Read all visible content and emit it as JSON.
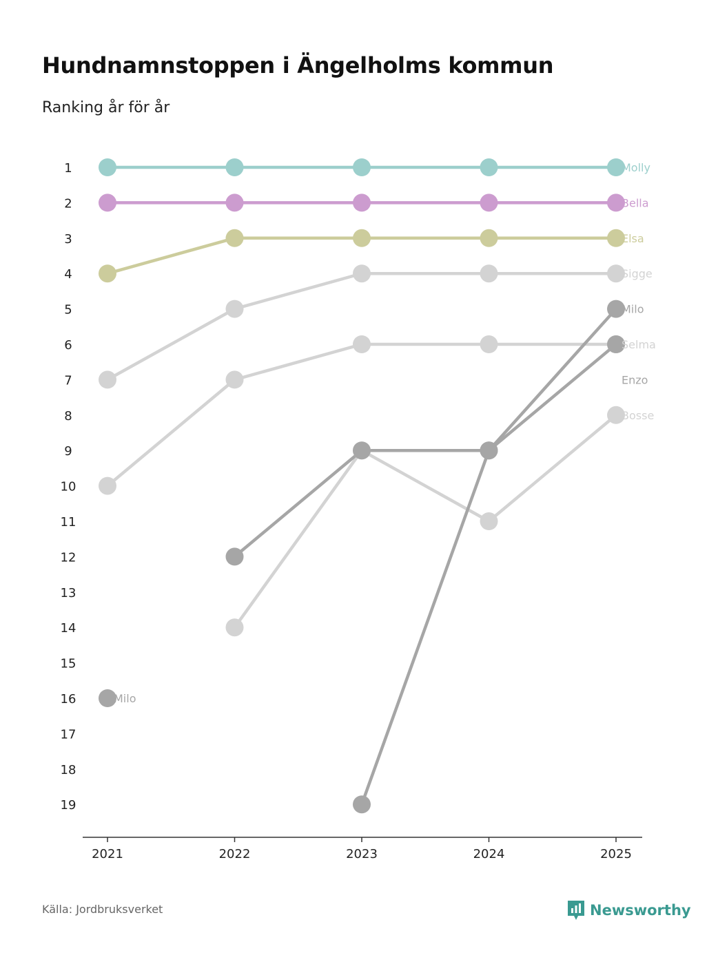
{
  "title": "Hundnamnstoppen i Ängelholms kommun",
  "subtitle": "Ranking år för år",
  "source": "Källa: Jordbruksverket",
  "brand": "Newsworthy",
  "colors": {
    "molly": "#9ccfcc",
    "bella": "#cc9ccf",
    "elsa": "#cccc9c",
    "light_gray": "#d3d3d3",
    "dark_gray": "#a6a6a6",
    "brand": "#3a9a91",
    "axis": "#333333"
  },
  "chart_data": {
    "type": "line",
    "title": "Hundnamnstoppen i Ängelholms kommun",
    "subtitle": "Ranking år för år",
    "x": [
      "2021",
      "2022",
      "2023",
      "2024",
      "2025"
    ],
    "y_ticks": [
      "1",
      "2",
      "3",
      "4",
      "5",
      "6",
      "7",
      "8",
      "9",
      "10",
      "11",
      "12",
      "13",
      "14",
      "15",
      "16",
      "17",
      "18",
      "19"
    ],
    "ylim": [
      1,
      19
    ],
    "y_inverted": true,
    "series": [
      {
        "name": "Bosse",
        "color": "#d3d3d3",
        "values": [
          null,
          14,
          9,
          11,
          8
        ],
        "label": "Bosse"
      },
      {
        "name": "Selma",
        "color": "#d3d3d3",
        "values": [
          10,
          7,
          6,
          6,
          6
        ],
        "label": "Selma"
      },
      {
        "name": "Sigge",
        "color": "#d3d3d3",
        "values": [
          7,
          5,
          4,
          4,
          4
        ],
        "label": "Sigge"
      },
      {
        "name": "Enzo",
        "color": "#a6a6a6",
        "values": [
          null,
          12,
          9,
          9,
          6
        ],
        "label": "Enzo"
      },
      {
        "name": "Milo",
        "color": "#a6a6a6",
        "values": [
          16,
          null,
          19,
          9,
          5
        ],
        "label": "Milo",
        "start_label": "Milo"
      },
      {
        "name": "Elsa",
        "color": "#cccc9c",
        "values": [
          4,
          3,
          3,
          3,
          3
        ],
        "label": "Elsa"
      },
      {
        "name": "Bella",
        "color": "#cc9ccf",
        "values": [
          2,
          2,
          2,
          2,
          2
        ],
        "label": "Bella"
      },
      {
        "name": "Molly",
        "color": "#9ccfcc",
        "values": [
          1,
          1,
          1,
          1,
          1
        ],
        "label": "Molly"
      }
    ]
  }
}
